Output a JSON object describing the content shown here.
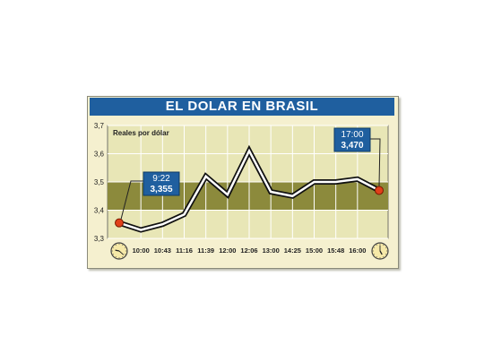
{
  "chart_data": {
    "type": "line",
    "title": "EL DOLAR EN BRASIL",
    "ylabel": "Reales por dólar",
    "ylim": [
      3.3,
      3.7
    ],
    "yticks": [
      "3,3",
      "3,4",
      "3,5",
      "3,6",
      "3,7"
    ],
    "categories": [
      "9:22",
      "10:00",
      "10:43",
      "11:16",
      "11:39",
      "12:00",
      "12:06",
      "13:00",
      "14:25",
      "15:00",
      "15:48",
      "16:00",
      "17:00"
    ],
    "x_tick_labels": [
      "10:00",
      "10:43",
      "11:16",
      "11:39",
      "12:00",
      "12:06",
      "13:00",
      "14:25",
      "15:00",
      "15:48",
      "16:00"
    ],
    "values": [
      3.355,
      3.33,
      3.35,
      3.385,
      3.52,
      3.455,
      3.61,
      3.465,
      3.45,
      3.5,
      3.5,
      3.51,
      3.47
    ],
    "band": [
      3.4,
      3.5
    ],
    "grid": true,
    "annotations": [
      {
        "time": "9:22",
        "value": "3,355"
      },
      {
        "time": "17:00",
        "value": "3,470"
      }
    ],
    "colors": {
      "title_bg": "#1f5f9f",
      "band": "#8c8a3c",
      "plot_bg": "#e8e6b6",
      "line": "#111111",
      "marker": "#e0401a",
      "callout": "#1f5f9f"
    }
  },
  "icons": {
    "start_clock": "clock-icon",
    "end_clock": "clock-icon"
  }
}
